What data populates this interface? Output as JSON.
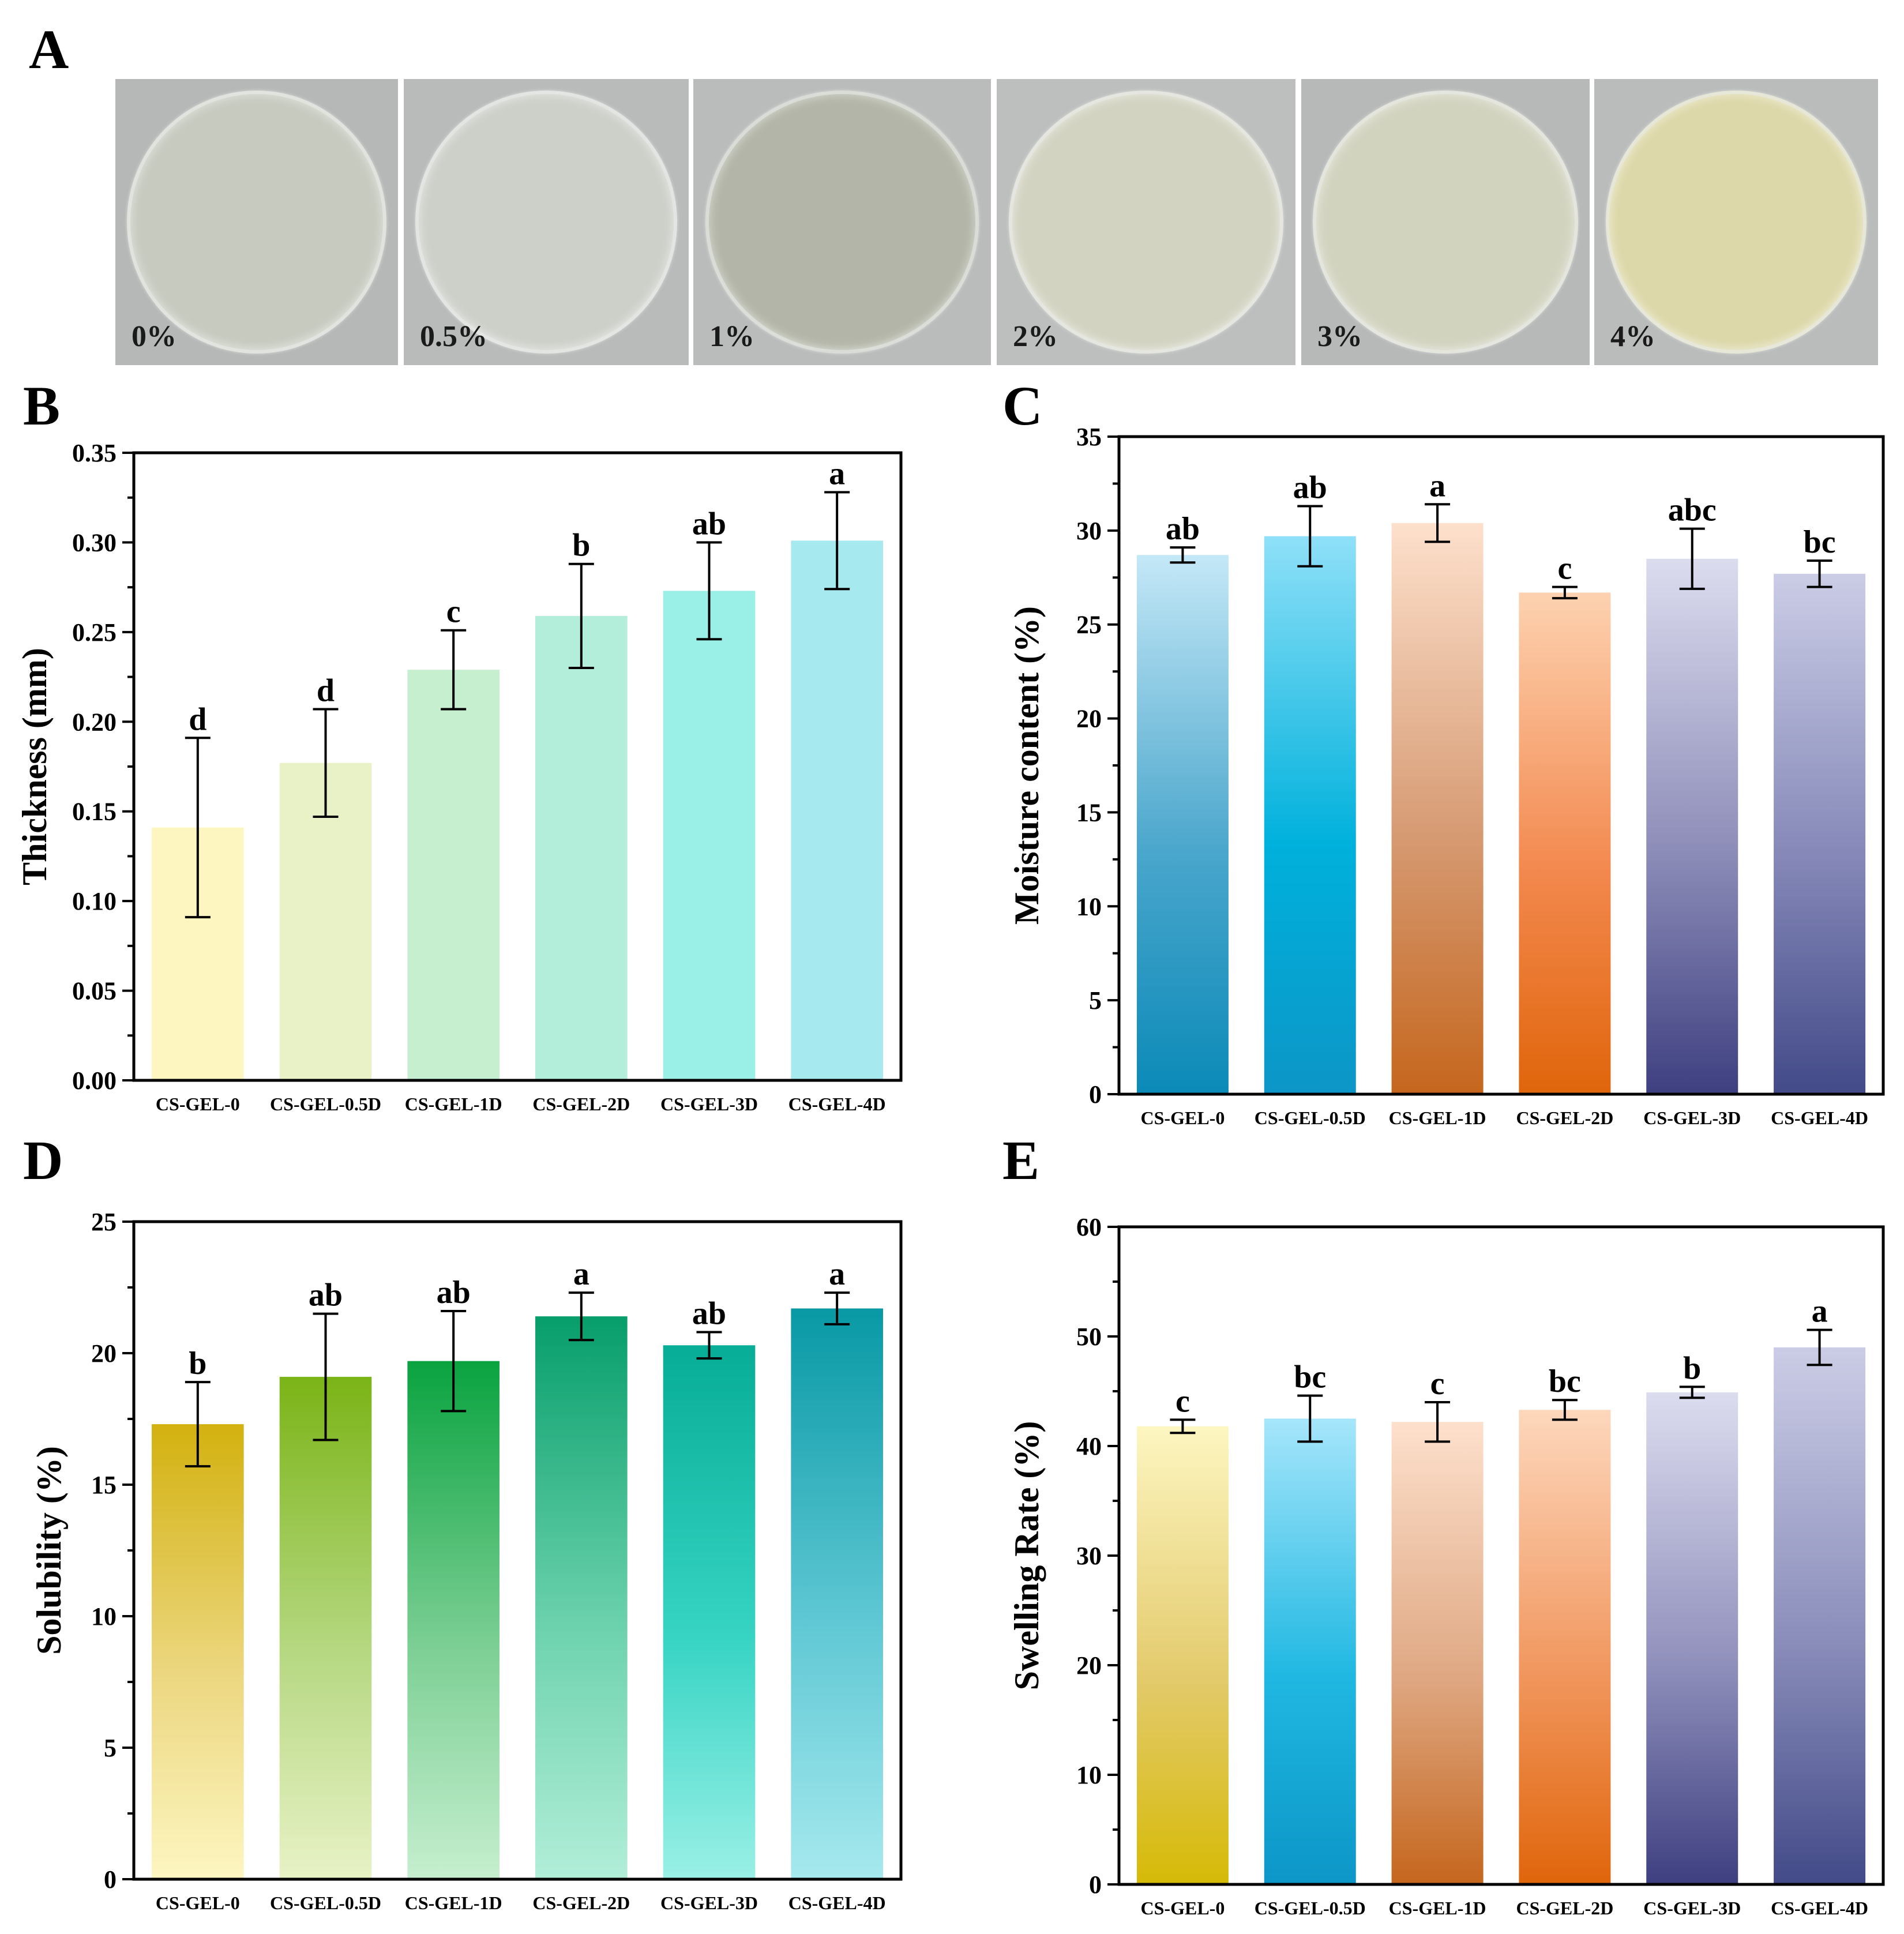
{
  "panels": {
    "A": "A",
    "B": "B",
    "C": "C",
    "D": "D",
    "E": "E"
  },
  "photos": [
    {
      "label": "0%",
      "bg": "#b5b8b6",
      "disc": "#c6cabf"
    },
    {
      "label": "0.5%",
      "bg": "#b8bbba",
      "disc": "#cdd0c9"
    },
    {
      "label": "1%",
      "bg": "#b9bcbb",
      "disc": "#b2b5a7"
    },
    {
      "label": "2%",
      "bg": "#bcbfbd",
      "disc": "#d3d3c2"
    },
    {
      "label": "3%",
      "bg": "#b6b9b7",
      "disc": "#d2d3bf"
    },
    {
      "label": "4%",
      "bg": "#b9bcba",
      "disc": "#ddd8a9"
    }
  ],
  "chart_data": [
    {
      "panel": "B",
      "type": "bar",
      "categories": [
        "CS-GEL-0",
        "CS-GEL-0.5D",
        "CS-GEL-1D",
        "CS-GEL-2D",
        "CS-GEL-3D",
        "CS-GEL-4D"
      ],
      "values": [
        0.141,
        0.177,
        0.229,
        0.259,
        0.273,
        0.301
      ],
      "errors": [
        0.05,
        0.03,
        0.022,
        0.029,
        0.027,
        0.027
      ],
      "letters": [
        "d",
        "d",
        "c",
        "b",
        "ab",
        "a"
      ],
      "ylabel": "Thickness (mm)",
      "ylim": [
        0,
        0.35
      ],
      "yticks": [
        "0.00",
        "0.05",
        "0.10",
        "0.15",
        "0.20",
        "0.25",
        "0.30",
        "0.35"
      ],
      "bar_colors": [
        "#fdf6c1",
        "#e8f2c6",
        "#c6efcf",
        "#b2eed9",
        "#9af0e6",
        "#a6e9ee"
      ],
      "gradient": false
    },
    {
      "panel": "C",
      "type": "bar",
      "categories": [
        "CS-GEL-0",
        "CS-GEL-0.5D",
        "CS-GEL-1D",
        "CS-GEL-2D",
        "CS-GEL-3D",
        "CS-GEL-4D"
      ],
      "values": [
        28.7,
        29.7,
        30.4,
        26.7,
        28.5,
        27.7
      ],
      "errors": [
        0.4,
        1.6,
        1.0,
        0.3,
        1.6,
        0.7
      ],
      "letters": [
        "ab",
        "ab",
        "a",
        "c",
        "abc",
        "bc"
      ],
      "ylabel": "Moisture content (%)",
      "ylim": [
        0,
        35
      ],
      "yticks": [
        "0",
        "5",
        "10",
        "15",
        "20",
        "25",
        "30",
        "35"
      ],
      "bar_colors_top": [
        "#c4e8f7",
        "#8fe0f8",
        "#fde0cc",
        "#fdd2b0",
        "#dcdcef",
        "#cbcde6"
      ],
      "bar_colors_mid": [
        "#4aa6cc",
        "#00b1dc",
        "#d69a72",
        "#f3894f",
        "#8c8cb8",
        "#8487b7"
      ],
      "bar_colors_bottom": [
        "#0b8ab8",
        "#0c96c7",
        "#c5661d",
        "#e0650b",
        "#3e3f80",
        "#424a88"
      ],
      "gradient": true
    },
    {
      "panel": "D",
      "type": "bar",
      "categories": [
        "CS-GEL-0",
        "CS-GEL-0.5D",
        "CS-GEL-1D",
        "CS-GEL-2D",
        "CS-GEL-3D",
        "CS-GEL-4D"
      ],
      "values": [
        17.3,
        19.1,
        19.7,
        21.4,
        20.3,
        21.7
      ],
      "errors": [
        1.6,
        2.4,
        1.9,
        0.9,
        0.5,
        0.6
      ],
      "letters": [
        "b",
        "ab",
        "ab",
        "a",
        "ab",
        "a"
      ],
      "ylabel": "Solubility (%)",
      "ylim": [
        0,
        25
      ],
      "yticks": [
        "0",
        "5",
        "10",
        "15",
        "20",
        "25"
      ],
      "bar_colors_top": [
        "#d3b10f",
        "#7bb417",
        "#0aa340",
        "#079e6b",
        "#07ad96",
        "#0899a5"
      ],
      "bar_colors_mid": [
        "#ecd780",
        "#b6d882",
        "#7ccf94",
        "#6cd2ad",
        "#37d4c4",
        "#5fc8d4"
      ],
      "bar_colors_bottom": [
        "#fdf6c1",
        "#e8f2c6",
        "#c6efcf",
        "#b2eed9",
        "#9af0e6",
        "#a6e9ee"
      ],
      "gradient": true
    },
    {
      "panel": "E",
      "type": "bar",
      "categories": [
        "CS-GEL-0",
        "CS-GEL-0.5D",
        "CS-GEL-1D",
        "CS-GEL-2D",
        "CS-GEL-3D",
        "CS-GEL-4D"
      ],
      "values": [
        41.8,
        42.5,
        42.2,
        43.3,
        44.9,
        49.0
      ],
      "errors": [
        0.6,
        2.1,
        1.8,
        0.9,
        0.5,
        1.6
      ],
      "letters": [
        "c",
        "bc",
        "c",
        "bc",
        "b",
        "a"
      ],
      "ylabel": "Swelling Rate (%)",
      "ylim": [
        0,
        60
      ],
      "yticks": [
        "0",
        "10",
        "20",
        "30",
        "40",
        "50",
        "60"
      ],
      "bar_colors_top": [
        "#fdf6c1",
        "#a6e6fb",
        "#fde0cc",
        "#fdd7bc",
        "#dcdcef",
        "#cbcde6"
      ],
      "bar_colors_mid": [
        "#e3ca6c",
        "#20b8e2",
        "#dfa883",
        "#f1975f",
        "#9090bc",
        "#8a8dba"
      ],
      "bar_colors_bottom": [
        "#d6ba07",
        "#0c96c7",
        "#c5661d",
        "#e0650b",
        "#3e3f80",
        "#424a88"
      ],
      "gradient": true
    }
  ]
}
